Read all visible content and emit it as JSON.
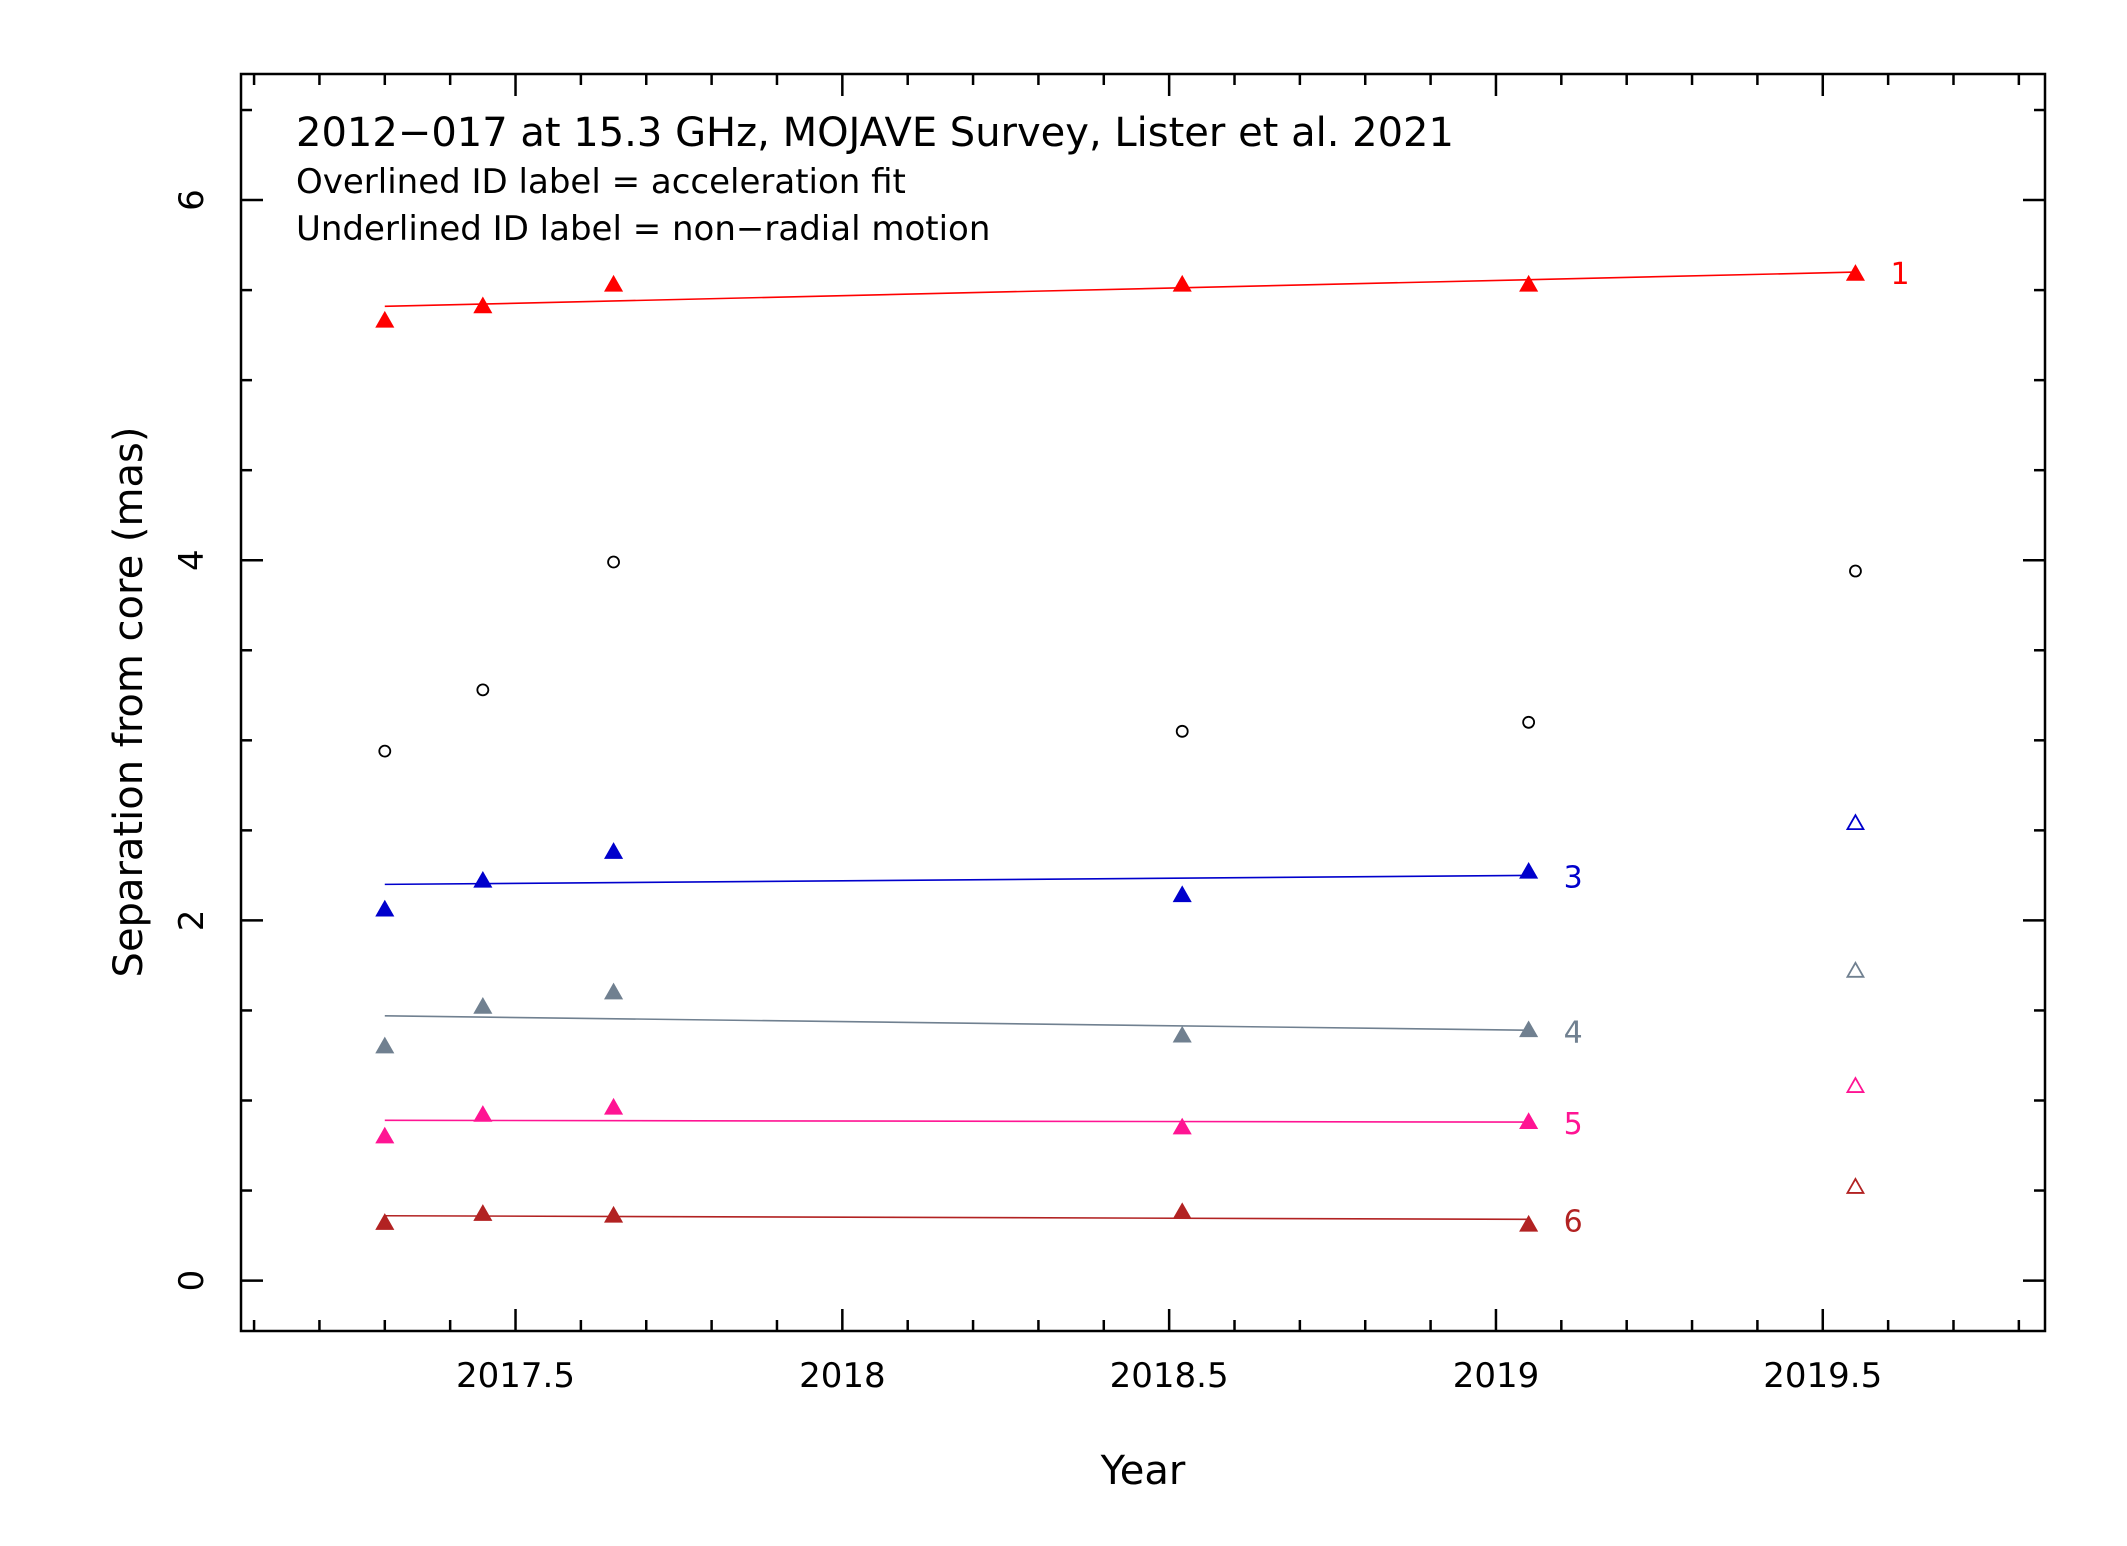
{
  "chart_data": {
    "type": "scatter",
    "title": "2012−017 at 15.3 GHz, MOJAVE Survey, Lister et al. 2021",
    "annotations": [
      "Overlined ID label = acceleration fit",
      "Underlined ID label = non−radial motion"
    ],
    "xlabel": "Year",
    "ylabel": "Separation from core (mas)",
    "xlim": [
      2017.08,
      2019.84
    ],
    "ylim": [
      -0.28,
      6.7
    ],
    "x_ticks": [
      {
        "value": 2017.5,
        "label": "2017.5"
      },
      {
        "value": 2018.0,
        "label": "2018"
      },
      {
        "value": 2018.5,
        "label": "2018.5"
      },
      {
        "value": 2019.0,
        "label": "2019"
      },
      {
        "value": 2019.5,
        "label": "2019.5"
      }
    ],
    "x_minor_step": 0.1,
    "y_ticks": [
      {
        "value": 0,
        "label": "0"
      },
      {
        "value": 2,
        "label": "2"
      },
      {
        "value": 4,
        "label": "4"
      },
      {
        "value": 6,
        "label": "6"
      }
    ],
    "y_minor_step": 0.5,
    "grid": false,
    "series": [
      {
        "name": "1",
        "color": "#ff0000",
        "marker": "filled-triangle",
        "x": [
          2017.3,
          2017.45,
          2017.65,
          2018.52,
          2019.05,
          2019.55
        ],
        "y": [
          5.33,
          5.41,
          5.53,
          5.53,
          5.53,
          5.59
        ],
        "fit": {
          "x": [
            2017.3,
            2019.55
          ],
          "y": [
            5.41,
            5.6
          ]
        }
      },
      {
        "name": "3",
        "color": "#0000cc",
        "marker": "filled-triangle",
        "x": [
          2017.3,
          2017.45,
          2017.65,
          2018.52,
          2019.05
        ],
        "y": [
          2.06,
          2.22,
          2.38,
          2.14,
          2.27
        ],
        "fit": {
          "x": [
            2017.3,
            2019.05
          ],
          "y": [
            2.2,
            2.25
          ]
        }
      },
      {
        "name": "4",
        "color": "#708090",
        "marker": "filled-triangle",
        "x": [
          2017.3,
          2017.45,
          2017.65,
          2018.52,
          2019.05
        ],
        "y": [
          1.3,
          1.52,
          1.6,
          1.36,
          1.39
        ],
        "fit": {
          "x": [
            2017.3,
            2019.05
          ],
          "y": [
            1.47,
            1.39
          ]
        }
      },
      {
        "name": "5",
        "color": "#ff1493",
        "marker": "filled-triangle",
        "x": [
          2017.3,
          2017.45,
          2017.65,
          2018.52,
          2019.05
        ],
        "y": [
          0.8,
          0.92,
          0.96,
          0.85,
          0.88
        ],
        "fit": {
          "x": [
            2017.3,
            2019.05
          ],
          "y": [
            0.89,
            0.88
          ]
        }
      },
      {
        "name": "6",
        "color": "#b22222",
        "marker": "filled-triangle",
        "x": [
          2017.3,
          2017.45,
          2017.65,
          2018.52,
          2019.05
        ],
        "y": [
          0.32,
          0.37,
          0.36,
          0.38,
          0.31
        ],
        "fit": {
          "x": [
            2017.3,
            2019.05
          ],
          "y": [
            0.36,
            0.34
          ]
        }
      }
    ],
    "unassigned_components": {
      "color": "#000000",
      "marker": "open-circle",
      "x": [
        2017.3,
        2017.45,
        2017.65,
        2018.52,
        2019.05,
        2019.55
      ],
      "y": [
        2.94,
        3.28,
        3.99,
        3.05,
        3.1,
        3.94
      ]
    },
    "open_triangles": [
      {
        "x": 2019.55,
        "y": 2.54,
        "color": "#0000cc"
      },
      {
        "x": 2019.55,
        "y": 1.72,
        "color": "#708090"
      },
      {
        "x": 2019.55,
        "y": 1.08,
        "color": "#ff1493"
      },
      {
        "x": 2019.55,
        "y": 0.52,
        "color": "#b22222"
      }
    ],
    "id_labels": [
      {
        "label": "1",
        "color": "#ff0000",
        "x": 2019.55,
        "y": 5.6
      },
      {
        "label": "3",
        "color": "#0000cc",
        "x": 2019.05,
        "y": 2.25
      },
      {
        "label": "4",
        "color": "#708090",
        "x": 2019.05,
        "y": 1.39
      },
      {
        "label": "5",
        "color": "#ff1493",
        "x": 2019.05,
        "y": 0.88
      },
      {
        "label": "6",
        "color": "#b22222",
        "x": 2019.05,
        "y": 0.34
      }
    ]
  }
}
